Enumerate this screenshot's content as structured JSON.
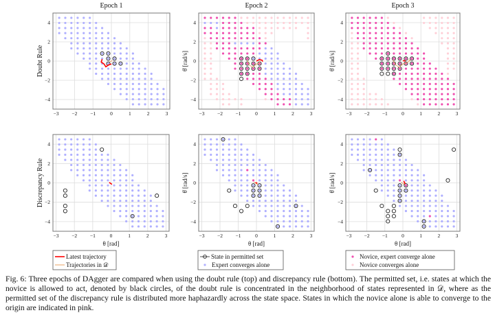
{
  "figure": {
    "row_labels": [
      "Doubt Rule",
      "Discrepancy Rule"
    ],
    "column_titles": [
      "Epoch 1",
      "Epoch 2",
      "Epoch 3"
    ],
    "xlabel": "θ [rad]",
    "ylabel": "θ̇ [rad/s]",
    "legends": [
      {
        "entries": [
          {
            "label": "Latest trajectory",
            "kind": "line",
            "color": "#ff0000"
          },
          {
            "label": "Trajectories in 𝒟",
            "kind": "line",
            "color": "#e8a060"
          }
        ]
      },
      {
        "entries": [
          {
            "label": "State in permitted set",
            "kind": "circle",
            "color": "#222222"
          },
          {
            "label": "Expert converges alone",
            "kind": "dot",
            "color": "#b0b0ff"
          }
        ]
      },
      {
        "entries": [
          {
            "label": "Novice, expert converge alone",
            "kind": "dot",
            "color": "#f050b0"
          },
          {
            "label": "Novice converges alone",
            "kind": "dot",
            "color": "#ffd0d8"
          }
        ]
      }
    ],
    "caption": "Fig. 6: Three epochs of DAgger are compared when using the doubt rule (top) and discrepancy rule (bottom). The permitted set, i.e. states at which the novice is allowed to act, denoted by black circles, of the doubt rule is concentrated in the neighborhood of states represented in 𝒟, where as the permitted set of the discrepancy rule is distributed more haphazardly across the state space. States in which the novice alone is able to converge to the origin are indicated in pink."
  },
  "chart_data": {
    "type": "scatter",
    "xlim": [
      -3.17,
      3.17
    ],
    "ylim": [
      -5,
      5
    ],
    "xticks": [
      -3,
      -2,
      -1,
      0,
      1,
      2,
      3
    ],
    "yticks": [
      -4,
      -2,
      0,
      2,
      4
    ],
    "grid": true,
    "colors": {
      "b": "#b0b0ff",
      "p": "#f050b0",
      "l": "#ffd0d8",
      "circle": "#222222",
      "latest": "#ff0000",
      "dataset": "#e8a060"
    },
    "point_codes": {
      "b": "Expert converges alone",
      "p": "Novice, expert converge alone",
      "l": "Novice converges alone",
      "B": "Expert converges alone + permitted",
      "P": "Novice, expert converge alone + permitted",
      "O": "State in permitted set"
    },
    "theta_grid": [
      -2.83,
      -2.5,
      -2.17,
      -1.83,
      -1.5,
      -1.17,
      -0.83,
      -0.5,
      -0.17,
      0.17,
      0.5,
      0.83,
      1.17,
      1.5,
      1.83,
      2.17,
      2.5,
      2.83
    ],
    "thetadot_grid": [
      4.5,
      3.97,
      3.44,
      2.91,
      2.38,
      1.85,
      1.32,
      0.79,
      0.26,
      -0.26,
      -0.79,
      -1.32,
      -1.85,
      -2.38,
      -2.91,
      -3.44,
      -3.97,
      -4.5
    ],
    "panels": [
      {
        "rule": "Doubt Rule",
        "epoch": "Epoch 1",
        "rows": [
          "bbbbbb............",
          "bbbbbbb...........",
          "bbbbbbbb..........",
          "bbbbbbbbb.........",
          ".bbbbbbbbb........",
          "..bbbbbbbbb.......",
          "..bbbbbbbbbb......",
          "...bbbbBBbbbb.....",
          "....bbbbBBbbb.....",
          ".....bbbBBBbbb....",
          ".....bbbbbbbbbb...",
          "......bbbbbbbbbb..",
          ".......bbbbbbbbb..",
          "........bbbbbbbbb.",
          ".........bbbbbbbbb",
          "..........bbbbbbbb",
          "...........bbbbbbb",
          "............bbbbbb"
        ],
        "latest": [
          [
            -0.5,
            0.2
          ],
          [
            -0.55,
            -0.1
          ],
          [
            -0.4,
            -0.3
          ],
          [
            -0.3,
            -0.6
          ],
          [
            -0.15,
            -0.4
          ],
          [
            0,
            -0.3
          ]
        ],
        "dataset": [
          [
            -0.1,
            -0.1
          ],
          [
            0.05,
            0.05
          ]
        ]
      },
      {
        "rule": "Doubt Rule",
        "epoch": "Epoch 2",
        "rows": [
          "ppppppllllllllllll",
          "bbbpppplllllllllll",
          "ppbpppppplllllll.l",
          "ppppppppplll.....l",
          "lpppppppppl......l",
          "llpppbbbbpp.......",
          "llppppppppbb......",
          "ll.ppppppbbbb.....",
          "ll..ppPPBbbbb.....",
          "ll...pPPPPbbbb....",
          "ll...pPPPPbbbbb...",
          "ll....PPppbbbbbb..",
          "lll...Oppppbbbbb..",
          ".lll....ppppbbbbb.",
          ".lll.....pppbbbbbb",
          ".llll.....pppbbbbb",
          "..lllll...lppppbbb",
          "...ll.l.....pppbbb"
        ],
        "latest": [
          [
            0,
            0
          ],
          [
            0.15,
            0.15
          ],
          [
            0.3,
            0.1
          ],
          [
            0.35,
            -0.05
          ]
        ],
        "dataset": [
          [
            -0.5,
            0.1
          ],
          [
            -0.4,
            -0.4
          ],
          [
            -0.2,
            -0.65
          ],
          [
            0,
            -0.3
          ],
          [
            0.15,
            -0.2
          ],
          [
            0.2,
            0
          ]
        ]
      },
      {
        "rule": "Doubt Rule",
        "epoch": "Epoch 3",
        "rows": [
          "ppppppl.....llllll",
          "pppppppl....llllll",
          "ppppppppl....lllll",
          "lppppppppl....llll",
          "lpppppppppl....lll",
          "llppppppppp....lll",
          "llpppppppppp....ll",
          "ll.pppPpppppp...ll",
          "ll..pPPPPPPpp...ll",
          "ll...PPPPPPppp..ll",
          "ll...PPPPpppppp.ll",
          "ll...OOPppppppppl.",
          "lll....pppppppppp.",
          "lll.....pppppppppp",
          "lll......ppppppppp",
          "lllll.....pppppppp",
          "llllll....lppppppp",
          "lllllll....lpppppp"
        ],
        "latest": [
          [
            0,
            0.05
          ],
          [
            0.15,
            0.0
          ]
        ],
        "dataset": [
          [
            -0.55,
            0.1
          ],
          [
            -0.4,
            -0.4
          ],
          [
            -0.2,
            -0.65
          ],
          [
            0,
            -0.3
          ],
          [
            0.2,
            -0.2
          ],
          [
            0.4,
            0.05
          ],
          [
            0.3,
            0.15
          ]
        ]
      },
      {
        "rule": "Discrepancy Rule",
        "epoch": "Epoch 1",
        "rows": [
          "bbbbbb............",
          "bbbbbbb...........",
          "bbbbbbbO..........",
          "bbbbbbbbb.........",
          ".bbbbbbbbb........",
          "..bbbbbbbbb.......",
          "..bbbbbbbbbb......",
          "...bbbbbbbbbb.....",
          "....bbbbbbbbb.....",
          ".....bbbbbbbbb....",
          ".O...bbbbbbbbbb...",
          ".O....bbbbbbbbbbO.",
          ".......bbbbbbbbb..",
          ".O......bbbbbbbbb.",
          ".O.......bbbbbbbbb",
          "..........bbBbbbbb",
          "...........bbbbbbb",
          "............bbbbbb"
        ],
        "latest": [
          [
            -0.1,
            0.05
          ],
          [
            0.05,
            -0.15
          ]
        ],
        "dataset": []
      },
      {
        "rule": "Discrepancy Rule",
        "epoch": "Epoch 2",
        "rows": [
          "bbbBbb............",
          "bbbbbbb...........",
          "bbbbbbbb..........",
          "bbbbbbbbb.........",
          ".bbbbbbbbb........",
          "..bbbbbbbbb.......",
          "..bbbbbpbbbb......",
          "...bbbbbbbbbb.....",
          "....bbbbpbbbb.....",
          ".....bbbBBbbbb....",
          "....ObbbBBbbbbb...",
          "......bbBBbbbbbb..",
          ".......bbbbbbbbb..",
          ".....O.ObbbbbbbBb.",
          "......O..bbbbbbbbb",
          "..........bbbbbbbb",
          "...........bbbbbbb",
          "............Bbbbbb"
        ],
        "latest": [
          [
            -0.05,
            0.05
          ],
          [
            0.05,
            -0.05
          ]
        ],
        "dataset": [
          [
            -0.15,
            0.1
          ],
          [
            0.1,
            -0.2
          ]
        ]
      },
      {
        "rule": "Discrepancy Rule",
        "epoch": "Epoch 3",
        "rows": [
          "bbbbpb............",
          "bbbbbbb...........",
          "bbbbbbbbO........O",
          "bbbbbbbbB.........",
          ".bbbbbbbbb........",
          "..bbbbbbbbb.......",
          "..bBbbbbbbbb......",
          "...bbbbbbbbbb.....",
          "....bbbbpbbbb...O.",
          ".....bbbBPbbbb....",
          "....ObbbBBbbbbb...",
          "......bbBbbbbbbb..",
          ".......bBbbbbbbb..",
          ".....O.Obbbbbbbbb.",
          "......OO.bbbbbbbbb",
          "......OO..bbbpbbbb",
          "......O....bBbbbbb",
          "............Bbbbbb"
        ],
        "latest": [
          [
            0.05,
            0.2
          ],
          [
            0.12,
            -0.1
          ]
        ],
        "dataset": [
          [
            -0.1,
            0.1
          ],
          [
            0.05,
            -0.15
          ],
          [
            0.15,
            0.05
          ]
        ]
      }
    ]
  }
}
